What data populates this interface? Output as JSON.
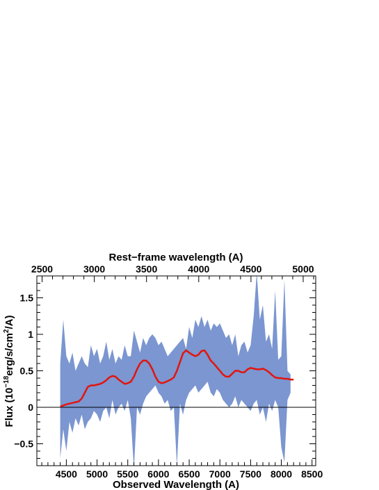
{
  "chart_data": {
    "type": "area",
    "title": "",
    "xlabel": "Observed Wavelength (A)",
    "x2label": "Rest−frame wavelength (A)",
    "ylabel_prefix": "Flux (10",
    "ylabel_exp1": "−18",
    "ylabel_mid": "erg/s/cm",
    "ylabel_exp2": "2",
    "ylabel_suffix": "/A)",
    "xlim": [
      4020,
      8560
    ],
    "ylim": [
      -0.8,
      1.8
    ],
    "x2lim": [
      2450,
      5120
    ],
    "xticks": [
      4500,
      5000,
      5500,
      6000,
      6500,
      7000,
      7500,
      8000,
      8500
    ],
    "x2ticks": [
      2500,
      3000,
      3500,
      4000,
      4500,
      5000
    ],
    "yticks": [
      -0.5,
      0,
      0.5,
      1,
      1.5
    ],
    "ytick_labels": [
      "−0.5",
      "0",
      "0.5",
      "1",
      "1.5"
    ],
    "band_color": "#7b96d0",
    "fit_color": "#e3140e",
    "band": {
      "x": [
        4400,
        4450,
        4500,
        4550,
        4600,
        4650,
        4700,
        4750,
        4800,
        4850,
        4900,
        4950,
        5000,
        5050,
        5100,
        5150,
        5200,
        5250,
        5300,
        5350,
        5400,
        5450,
        5500,
        5550,
        5600,
        5650,
        5700,
        5750,
        5800,
        5850,
        5900,
        5950,
        6000,
        6050,
        6100,
        6150,
        6200,
        6250,
        6300,
        6350,
        6400,
        6450,
        6500,
        6550,
        6600,
        6650,
        6700,
        6750,
        6800,
        6850,
        6900,
        6950,
        7000,
        7050,
        7100,
        7150,
        7200,
        7250,
        7300,
        7350,
        7400,
        7450,
        7500,
        7550,
        7600,
        7650,
        7700,
        7750,
        7800,
        7850,
        7900,
        7950,
        8000,
        8050,
        8100,
        8150
      ],
      "upper": [
        0.6,
        1.2,
        0.7,
        0.6,
        0.75,
        0.5,
        0.6,
        0.7,
        0.6,
        0.55,
        0.85,
        0.7,
        0.8,
        0.6,
        0.7,
        0.9,
        0.65,
        0.8,
        0.6,
        0.7,
        0.65,
        0.85,
        0.7,
        0.7,
        1.05,
        0.9,
        0.75,
        0.95,
        0.85,
        0.95,
        1.0,
        0.95,
        0.85,
        0.9,
        0.8,
        0.7,
        0.75,
        0.8,
        0.85,
        0.9,
        0.95,
        0.8,
        1.1,
        0.95,
        1.2,
        1.1,
        1.25,
        1.1,
        1.2,
        1.05,
        1.15,
        1.1,
        1.15,
        1.05,
        0.95,
        1.0,
        0.85,
        1.0,
        0.7,
        0.85,
        0.9,
        0.75,
        0.85,
        1.25,
        1.85,
        1.2,
        1.4,
        0.9,
        1.0,
        0.8,
        1.6,
        0.65,
        0.7,
        1.75,
        0.5,
        0.45
      ],
      "lower": [
        -0.7,
        -0.3,
        -0.6,
        -0.2,
        -0.35,
        -0.15,
        -0.25,
        -0.1,
        -0.3,
        -0.2,
        -0.15,
        -0.05,
        -0.1,
        -0.2,
        -0.05,
        0.0,
        -0.15,
        0.1,
        -0.1,
        0.0,
        0.05,
        -0.05,
        0.1,
        -0.15,
        -0.85,
        0.0,
        -0.1,
        0.05,
        0.15,
        0.2,
        0.25,
        0.3,
        0.2,
        0.15,
        0.05,
        0.1,
        -0.05,
        0.0,
        -0.8,
        0.05,
        -0.1,
        0.1,
        0.2,
        0.25,
        0.3,
        0.2,
        0.25,
        0.3,
        0.35,
        0.2,
        0.15,
        0.25,
        0.2,
        0.1,
        0.05,
        0.0,
        0.05,
        0.15,
        0.0,
        0.1,
        0.05,
        0.0,
        -0.05,
        0.05,
        0.1,
        -0.1,
        0.0,
        -0.2,
        0.05,
        -0.05,
        0.1,
        0.0,
        -0.55,
        -0.75,
        0.1,
        0.2
      ]
    },
    "fit": {
      "x": [
        4400,
        4500,
        4600,
        4700,
        4750,
        4800,
        4850,
        4900,
        4950,
        5000,
        5050,
        5100,
        5150,
        5200,
        5250,
        5300,
        5350,
        5400,
        5450,
        5500,
        5550,
        5600,
        5650,
        5700,
        5750,
        5800,
        5850,
        5900,
        5950,
        6000,
        6050,
        6100,
        6150,
        6200,
        6250,
        6300,
        6350,
        6400,
        6450,
        6500,
        6550,
        6600,
        6650,
        6700,
        6750,
        6800,
        6850,
        6900,
        6950,
        7000,
        7050,
        7100,
        7150,
        7200,
        7250,
        7300,
        7350,
        7400,
        7450,
        7500,
        7550,
        7600,
        7650,
        7700,
        7750,
        7800,
        7850,
        7900,
        7950,
        8000,
        8050,
        8100,
        8150,
        8200
      ],
      "y": [
        0.01,
        0.04,
        0.06,
        0.08,
        0.12,
        0.2,
        0.28,
        0.3,
        0.3,
        0.31,
        0.32,
        0.34,
        0.37,
        0.41,
        0.43,
        0.42,
        0.38,
        0.35,
        0.32,
        0.33,
        0.35,
        0.42,
        0.52,
        0.6,
        0.64,
        0.64,
        0.6,
        0.52,
        0.42,
        0.35,
        0.33,
        0.34,
        0.36,
        0.38,
        0.41,
        0.5,
        0.62,
        0.74,
        0.78,
        0.75,
        0.72,
        0.7,
        0.72,
        0.77,
        0.78,
        0.72,
        0.64,
        0.6,
        0.55,
        0.5,
        0.45,
        0.42,
        0.42,
        0.46,
        0.5,
        0.5,
        0.48,
        0.48,
        0.52,
        0.54,
        0.53,
        0.52,
        0.52,
        0.53,
        0.51,
        0.48,
        0.44,
        0.41,
        0.4,
        0.4,
        0.39,
        0.39,
        0.38,
        0.38
      ]
    }
  }
}
